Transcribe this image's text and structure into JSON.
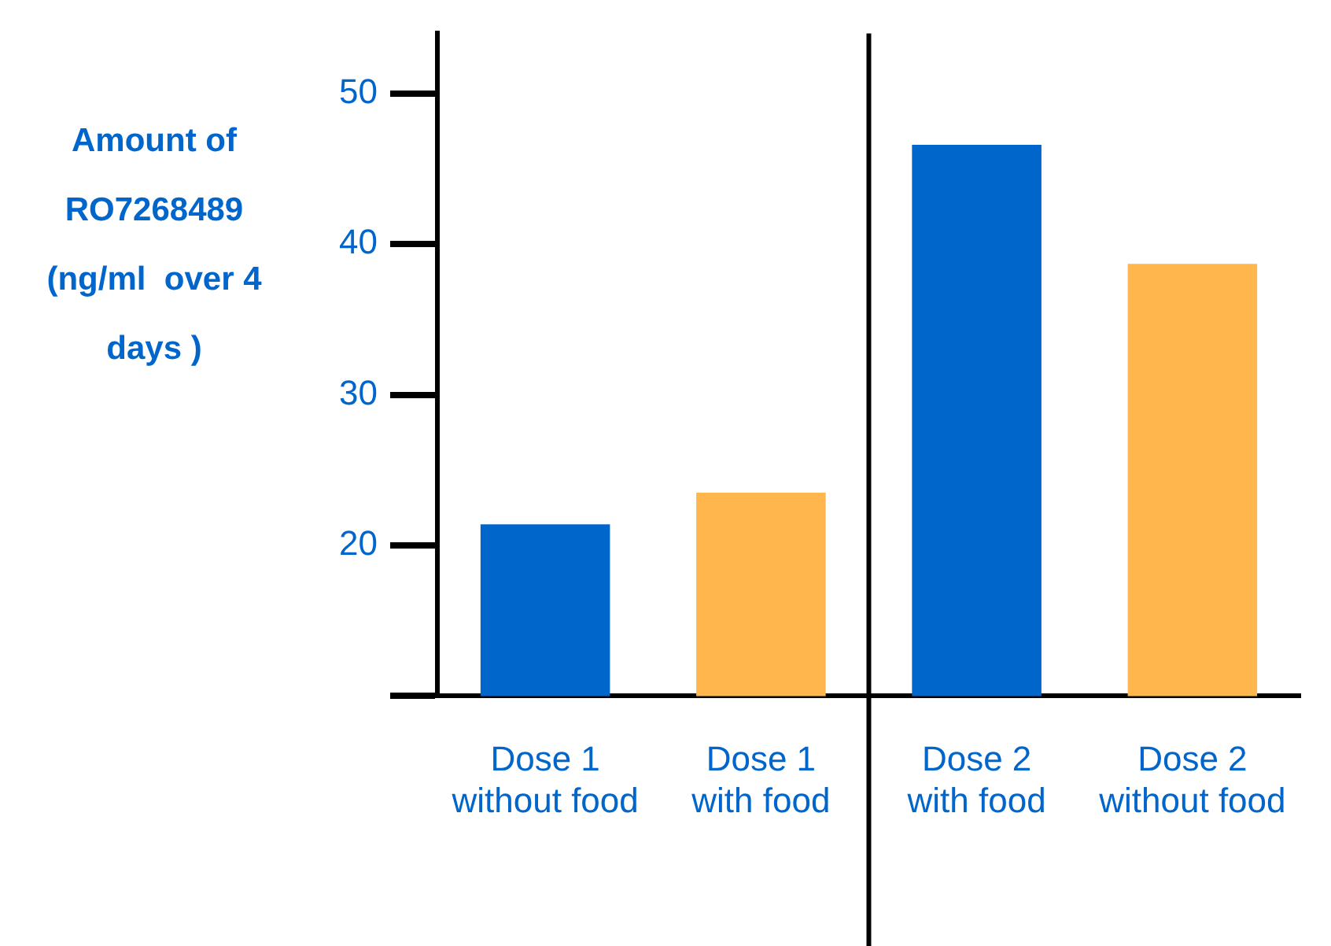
{
  "chart_data": {
    "type": "bar",
    "ylabel": "Amount of RO7268489 (ng/ml  over 4 days )",
    "categories": [
      "Dose 1 without food",
      "Dose 1 with food",
      "Dose 2 with food",
      "Dose 2 without food"
    ],
    "values": [
      21.4,
      23.5,
      46.6,
      38.7
    ],
    "colors": [
      "#0066cc",
      "#ffb74d",
      "#0066cc",
      "#ffb74d"
    ],
    "ylim": [
      10,
      54
    ],
    "yticks": [
      {
        "value": 10,
        "label": null
      },
      20,
      30,
      40,
      50
    ],
    "grid": false,
    "legend": false
  }
}
